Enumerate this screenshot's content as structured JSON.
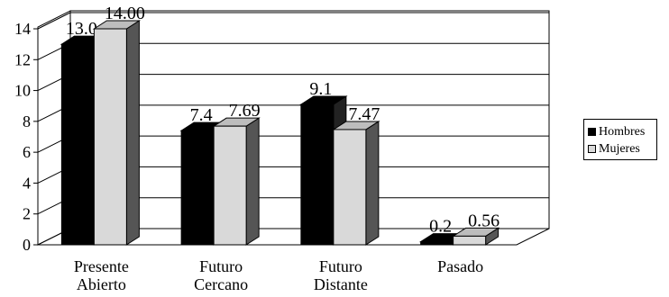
{
  "chart_data": {
    "type": "bar",
    "categories": [
      "Presente\nAbierto",
      "Futuro\nCercano",
      "Futuro\nDistante",
      "Pasado"
    ],
    "series": [
      {
        "name": "Hombres",
        "values": [
          13.0,
          7.4,
          9.1,
          0.2
        ],
        "labels": [
          "13.0",
          "7.4",
          "9.1",
          "0.2"
        ],
        "color": "#000000"
      },
      {
        "name": "Mujeres",
        "values": [
          14.0,
          7.69,
          7.47,
          0.56
        ],
        "labels": [
          "14.00",
          "7.69",
          "7.47",
          "0.56"
        ],
        "color": "#d9d9d9"
      }
    ],
    "ylim": [
      0,
      14
    ],
    "yticks": [
      0,
      2,
      4,
      6,
      8,
      10,
      12,
      14
    ],
    "grid": true,
    "legend": "right",
    "style": "3d-clustered-column"
  }
}
